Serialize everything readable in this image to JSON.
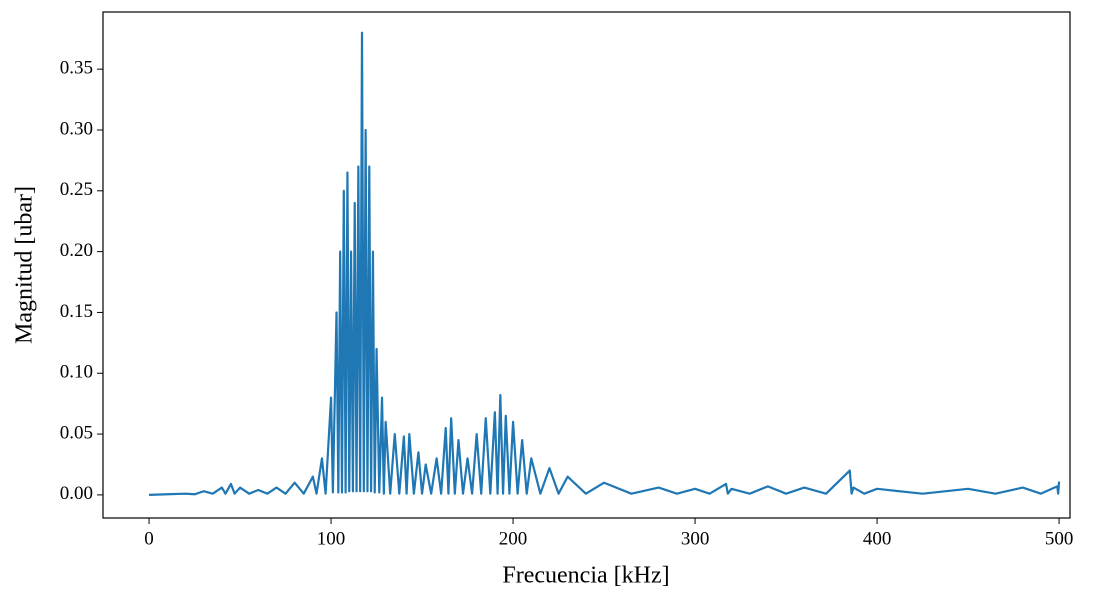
{
  "chart_data": {
    "type": "line",
    "xlabel": "Frecuencia [kHz]",
    "ylabel": "Magnitud [ubar]",
    "xlim": [
      -25.3,
      506
    ],
    "ylim": [
      -0.019,
      0.397
    ],
    "xticks": [
      0,
      100,
      200,
      300,
      400,
      500
    ],
    "yticks": [
      {
        "value": 0,
        "label": "0.00"
      },
      0.05,
      {
        "value": 0.1,
        "label": "0.10"
      },
      0.15,
      {
        "value": 0.2,
        "label": "0.20"
      },
      0.25,
      {
        "value": 0.3,
        "label": "0.30"
      },
      0.35
    ],
    "grid": false,
    "series": [
      {
        "color": "#1f77b4",
        "x": [
          0,
          10,
          20,
          25,
          30,
          35,
          40,
          42,
          45,
          47,
          50,
          55,
          60,
          65,
          70,
          75,
          80,
          85,
          90,
          92,
          95,
          97,
          100,
          101,
          103,
          104,
          105,
          106,
          107,
          108,
          109,
          110,
          111,
          112,
          113,
          114,
          115,
          116,
          117,
          118,
          119,
          120,
          121,
          122,
          123,
          124,
          125,
          126.5,
          128,
          129,
          130,
          132.5,
          135,
          137.5,
          140,
          141.5,
          143,
          145.5,
          148,
          150,
          152,
          155,
          158,
          160.5,
          163,
          164.5,
          166,
          168,
          170,
          172.5,
          175,
          177.5,
          180,
          182.5,
          185,
          187.5,
          190,
          191.5,
          193,
          194.5,
          196,
          198,
          200,
          202.5,
          205,
          207.5,
          210,
          215,
          220,
          225,
          230,
          240,
          250,
          265,
          280,
          290,
          300,
          308,
          317,
          318,
          320,
          330,
          340,
          350,
          360,
          372,
          385,
          386,
          387,
          393,
          400,
          425,
          450,
          465,
          480,
          490,
          499,
          499.5,
          500
        ],
        "values": [
          0,
          0.0005,
          0.001,
          0.0005,
          0.003,
          0.001,
          0.006,
          0.001,
          0.009,
          0.001,
          0.006,
          0.001,
          0.004,
          0.001,
          0.006,
          0.001,
          0.01,
          0.001,
          0.015,
          0.001,
          0.03,
          0.001,
          0.08,
          0.002,
          0.15,
          0.002,
          0.2,
          0.002,
          0.25,
          0.002,
          0.265,
          0.003,
          0.2,
          0.003,
          0.24,
          0.003,
          0.27,
          0.003,
          0.38,
          0.003,
          0.3,
          0.003,
          0.27,
          0.003,
          0.2,
          0.002,
          0.12,
          0.002,
          0.08,
          0.001,
          0.06,
          0.001,
          0.05,
          0.001,
          0.048,
          0.001,
          0.05,
          0.001,
          0.035,
          0.001,
          0.025,
          0.001,
          0.03,
          0.001,
          0.055,
          0.001,
          0.063,
          0.001,
          0.045,
          0.001,
          0.03,
          0.001,
          0.05,
          0.001,
          0.063,
          0.001,
          0.068,
          0.001,
          0.082,
          0.001,
          0.065,
          0.001,
          0.06,
          0.001,
          0.045,
          0.001,
          0.03,
          0.001,
          0.022,
          0.001,
          0.015,
          0.001,
          0.01,
          0.001,
          0.006,
          0.001,
          0.005,
          0.001,
          0.009,
          0.001,
          0.005,
          0.001,
          0.007,
          0.001,
          0.006,
          0.001,
          0.02,
          0.001,
          0.006,
          0.001,
          0.005,
          0.001,
          0.005,
          0.001,
          0.006,
          0.001,
          0.007,
          0.001,
          0.011
        ]
      }
    ]
  }
}
